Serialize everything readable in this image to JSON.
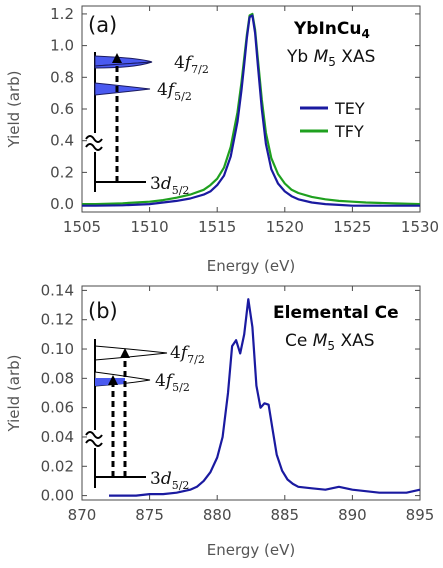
{
  "colors": {
    "tey": "#1a1aa0",
    "tfy": "#1fa01f",
    "axis": "#4a4a4a",
    "fill_blue": "#4a5af0"
  },
  "chart_data": [
    {
      "id": "a",
      "type": "line",
      "panel_label": "(a)",
      "title": "YbInCu",
      "title_sub": "4",
      "subtitle_pre": "Yb ",
      "subtitle_it": "M",
      "subtitle_sub": "5",
      "subtitle_post": " XAS",
      "xlabel": "Energy (eV)",
      "ylabel": "Yield (arb)",
      "xlim": [
        1505,
        1530
      ],
      "ylim": [
        -0.05,
        1.25
      ],
      "xticks": [
        "1505",
        "1510",
        "1515",
        "1520",
        "1525",
        "1530"
      ],
      "yticks": [
        "0.0",
        "0.2",
        "0.4",
        "0.6",
        "0.8",
        "1.0",
        "1.2"
      ],
      "legend_position": "right",
      "series": [
        {
          "name": "TEY",
          "color": "#1a1aa0",
          "x": [
            1504.5,
            1506,
            1508,
            1510,
            1511,
            1512,
            1513,
            1514,
            1514.5,
            1515,
            1515.5,
            1516,
            1516.5,
            1516.8,
            1517,
            1517.2,
            1517.4,
            1517.6,
            1517.8,
            1518,
            1518.3,
            1518.6,
            1519,
            1519.5,
            1520,
            1520.5,
            1521,
            1522,
            1523,
            1524,
            1525,
            1526,
            1528,
            1530
          ],
          "y": [
            -0.01,
            -0.01,
            -0.008,
            0.0,
            0.01,
            0.02,
            0.035,
            0.06,
            0.08,
            0.12,
            0.18,
            0.3,
            0.52,
            0.72,
            0.88,
            1.05,
            1.18,
            1.19,
            1.08,
            0.88,
            0.6,
            0.38,
            0.22,
            0.13,
            0.08,
            0.05,
            0.03,
            0.01,
            0.0,
            -0.005,
            -0.01,
            -0.01,
            -0.01,
            -0.01
          ]
        },
        {
          "name": "TFY",
          "color": "#1fa01f",
          "x": [
            1504.5,
            1506,
            1508,
            1510,
            1511,
            1512,
            1513,
            1514,
            1514.5,
            1515,
            1515.5,
            1516,
            1516.5,
            1516.8,
            1517,
            1517.2,
            1517.4,
            1517.6,
            1517.8,
            1518,
            1518.3,
            1518.6,
            1519,
            1519.5,
            1520,
            1520.5,
            1521,
            1522,
            1523,
            1524,
            1525,
            1526,
            1528,
            1530
          ],
          "y": [
            0.0,
            0.0,
            0.005,
            0.015,
            0.025,
            0.04,
            0.06,
            0.09,
            0.12,
            0.16,
            0.23,
            0.36,
            0.58,
            0.77,
            0.92,
            1.07,
            1.19,
            1.2,
            1.1,
            0.92,
            0.66,
            0.45,
            0.29,
            0.19,
            0.13,
            0.09,
            0.07,
            0.045,
            0.03,
            0.02,
            0.015,
            0.01,
            0.005,
            0.0
          ]
        }
      ],
      "inset": {
        "levels": [
          {
            "main": "4",
            "it": "f",
            "sub": "7/2"
          },
          {
            "main": "4",
            "it": "f",
            "sub": "5/2"
          },
          {
            "main": "3",
            "it": "d",
            "sub": "5/2"
          }
        ]
      }
    },
    {
      "id": "b",
      "type": "line",
      "panel_label": "(b)",
      "title": "Elemental Ce",
      "subtitle_pre": "Ce ",
      "subtitle_it": "M",
      "subtitle_sub": "5",
      "subtitle_post": " XAS",
      "xlabel": "Energy (eV)",
      "ylabel": "Yield (arb)",
      "xlim": [
        870,
        895
      ],
      "ylim": [
        -0.003,
        0.143
      ],
      "xticks": [
        "870",
        "875",
        "880",
        "885",
        "890",
        "895"
      ],
      "yticks": [
        "0.00",
        "0.02",
        "0.04",
        "0.06",
        "0.08",
        "0.10",
        "0.12",
        "0.14"
      ],
      "series": [
        {
          "name": "",
          "color": "#1a1aa0",
          "x": [
            872,
            873,
            874,
            875,
            876,
            877,
            878,
            878.5,
            879,
            879.5,
            880,
            880.4,
            880.8,
            881.1,
            881.4,
            881.7,
            882.0,
            882.3,
            882.6,
            882.9,
            883.2,
            883.5,
            883.8,
            884.1,
            884.4,
            884.8,
            885.2,
            885.6,
            886,
            887,
            888,
            889,
            890,
            891,
            892,
            893,
            894,
            895
          ],
          "y": [
            0.0,
            0.0,
            0.0,
            0.001,
            0.001,
            0.002,
            0.004,
            0.006,
            0.01,
            0.016,
            0.026,
            0.04,
            0.07,
            0.102,
            0.106,
            0.097,
            0.11,
            0.134,
            0.115,
            0.075,
            0.06,
            0.063,
            0.062,
            0.045,
            0.028,
            0.017,
            0.011,
            0.008,
            0.006,
            0.005,
            0.004,
            0.006,
            0.004,
            0.003,
            0.002,
            0.002,
            0.002,
            0.004
          ]
        }
      ],
      "inset": {
        "levels": [
          {
            "main": "4",
            "it": "f",
            "sub": "7/2"
          },
          {
            "main": "4",
            "it": "f",
            "sub": "5/2"
          },
          {
            "main": "3",
            "it": "d",
            "sub": "5/2"
          }
        ]
      }
    }
  ]
}
